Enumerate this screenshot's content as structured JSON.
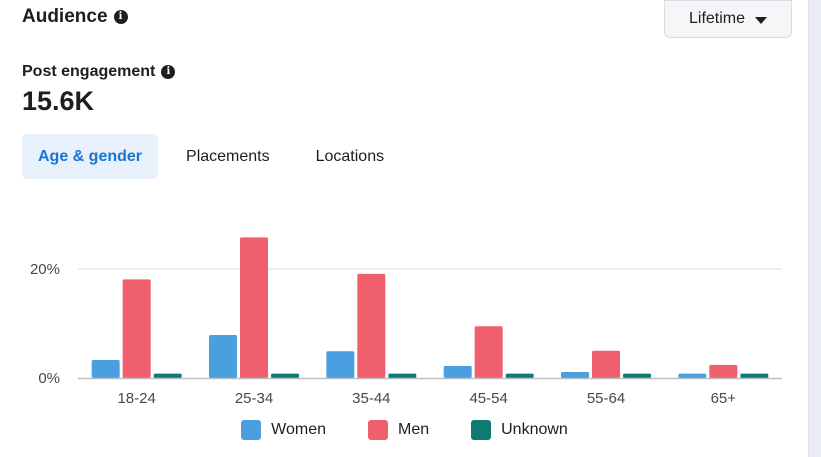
{
  "header": {
    "title": "Audience",
    "info_icon": "info-icon"
  },
  "date_range": {
    "selected": "Lifetime",
    "icon": "caret-down-icon"
  },
  "metric": {
    "label": "Post engagement",
    "value": "15.6K",
    "info_icon": "info-icon"
  },
  "tabs": [
    {
      "label": "Age & gender",
      "active": true
    },
    {
      "label": "Placements",
      "active": false
    },
    {
      "label": "Locations",
      "active": false
    }
  ],
  "colors": {
    "women": "#4a9fe0",
    "men": "#f0606c",
    "unknown": "#0e7a72",
    "grid": "#dadde1",
    "axis": "#bcc0c4"
  },
  "chart_data": {
    "type": "bar",
    "categories": [
      "18-24",
      "25-34",
      "35-44",
      "45-54",
      "55-64",
      "65+"
    ],
    "series": [
      {
        "name": "Women",
        "values": [
          3.3,
          7.9,
          4.9,
          2.2,
          1.1,
          0.8
        ]
      },
      {
        "name": "Men",
        "values": [
          18.1,
          25.8,
          19.1,
          9.5,
          5.0,
          2.4
        ]
      },
      {
        "name": "Unknown",
        "values": [
          0.8,
          0.8,
          0.8,
          0.8,
          0.8,
          0.8
        ]
      }
    ],
    "y_ticks": [
      {
        "value": 0,
        "label": "0%"
      },
      {
        "value": 20,
        "label": "20%"
      }
    ],
    "ylim": [
      0,
      27
    ],
    "grid": true,
    "legend": "bottom-center"
  }
}
